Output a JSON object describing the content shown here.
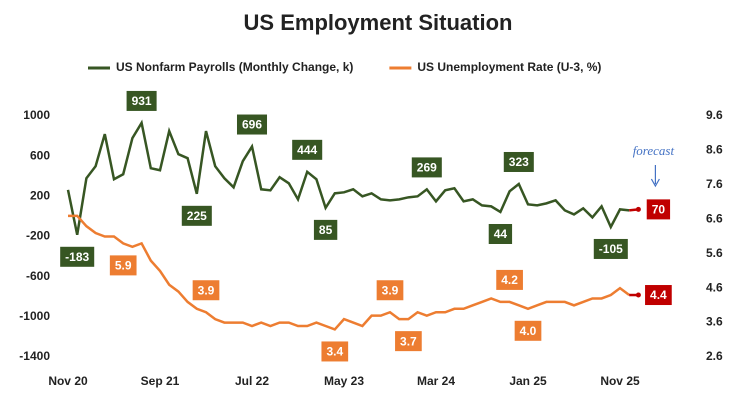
{
  "chart_data": {
    "type": "line",
    "title": "US Employment Situation",
    "annotation": "forecast",
    "forecast_color": "#c00000",
    "categories": [
      "Nov 20",
      null,
      null,
      null,
      null,
      null,
      null,
      null,
      null,
      null,
      "Sep 21",
      null,
      null,
      null,
      null,
      null,
      null,
      null,
      null,
      null,
      "Jul 22",
      null,
      null,
      null,
      null,
      null,
      null,
      null,
      null,
      null,
      "May 23",
      null,
      null,
      null,
      null,
      null,
      null,
      null,
      null,
      null,
      "Mar 24",
      null,
      null,
      null,
      null,
      null,
      null,
      null,
      null,
      null,
      "Jan 25",
      null,
      null,
      null,
      null,
      null,
      null,
      null,
      null,
      null,
      "Nov 25",
      null,
      null
    ],
    "ylim": [
      -1400,
      1000
    ],
    "yticks": [
      -1400,
      -1000,
      -600,
      -200,
      200,
      600,
      1000
    ],
    "y2lim": [
      2.6,
      9.6
    ],
    "y2ticks": [
      2.6,
      3.6,
      4.6,
      5.6,
      6.6,
      7.6,
      8.6,
      9.6
    ],
    "series": [
      {
        "name": "US Nonfarm Payrolls (Monthly Change, k)",
        "color": "#375623",
        "values": [
          264,
          -183,
          380,
          500,
          820,
          370,
          420,
          780,
          931,
          480,
          460,
          850,
          620,
          580,
          225,
          850,
          500,
          380,
          290,
          550,
          696,
          270,
          260,
          390,
          330,
          170,
          444,
          370,
          85,
          230,
          240,
          270,
          200,
          230,
          170,
          160,
          170,
          190,
          200,
          269,
          150,
          260,
          280,
          150,
          170,
          110,
          100,
          44,
          250,
          323,
          120,
          110,
          130,
          160,
          60,
          20,
          80,
          -10,
          100,
          -105,
          70,
          60,
          70
        ],
        "value_labels": [
          null,
          "-183",
          null,
          null,
          null,
          null,
          null,
          null,
          "931",
          null,
          null,
          null,
          null,
          null,
          "225",
          null,
          null,
          null,
          null,
          null,
          "696",
          null,
          null,
          null,
          null,
          null,
          "444",
          null,
          "85",
          null,
          null,
          null,
          null,
          null,
          null,
          null,
          null,
          null,
          null,
          "269",
          null,
          null,
          null,
          null,
          null,
          null,
          null,
          "44",
          null,
          "323",
          null,
          null,
          null,
          null,
          null,
          null,
          null,
          null,
          null,
          "-105",
          null,
          null,
          "70"
        ]
      },
      {
        "name": "US Unemployment Rate (U-3, %)",
        "color": "#ed7d31",
        "axis": "y2",
        "values": [
          6.7,
          6.7,
          6.4,
          6.2,
          6.1,
          6.1,
          5.9,
          5.8,
          5.9,
          5.4,
          5.1,
          4.7,
          4.5,
          4.2,
          4.0,
          3.9,
          3.7,
          3.6,
          3.6,
          3.6,
          3.5,
          3.6,
          3.5,
          3.6,
          3.6,
          3.5,
          3.5,
          3.6,
          3.5,
          3.4,
          3.7,
          3.6,
          3.5,
          3.8,
          3.8,
          3.9,
          3.7,
          3.7,
          3.9,
          3.8,
          3.9,
          3.9,
          4.0,
          4.0,
          4.1,
          4.2,
          4.3,
          4.2,
          4.2,
          4.1,
          4.0,
          4.1,
          4.2,
          4.2,
          4.2,
          4.1,
          4.2,
          4.3,
          4.3,
          4.4,
          4.6,
          4.4,
          4.4
        ],
        "value_labels": [
          null,
          null,
          null,
          null,
          null,
          null,
          "5.9",
          null,
          null,
          null,
          null,
          null,
          null,
          null,
          null,
          "3.9",
          null,
          null,
          null,
          null,
          null,
          null,
          null,
          null,
          null,
          null,
          null,
          null,
          null,
          "3.4",
          null,
          null,
          null,
          null,
          null,
          "3.9",
          null,
          "3.7",
          null,
          null,
          null,
          null,
          null,
          null,
          null,
          null,
          null,
          null,
          "4.2",
          null,
          "4.0",
          null,
          null,
          null,
          null,
          null,
          null,
          null,
          null,
          null,
          null,
          null,
          "4.4"
        ]
      }
    ]
  }
}
